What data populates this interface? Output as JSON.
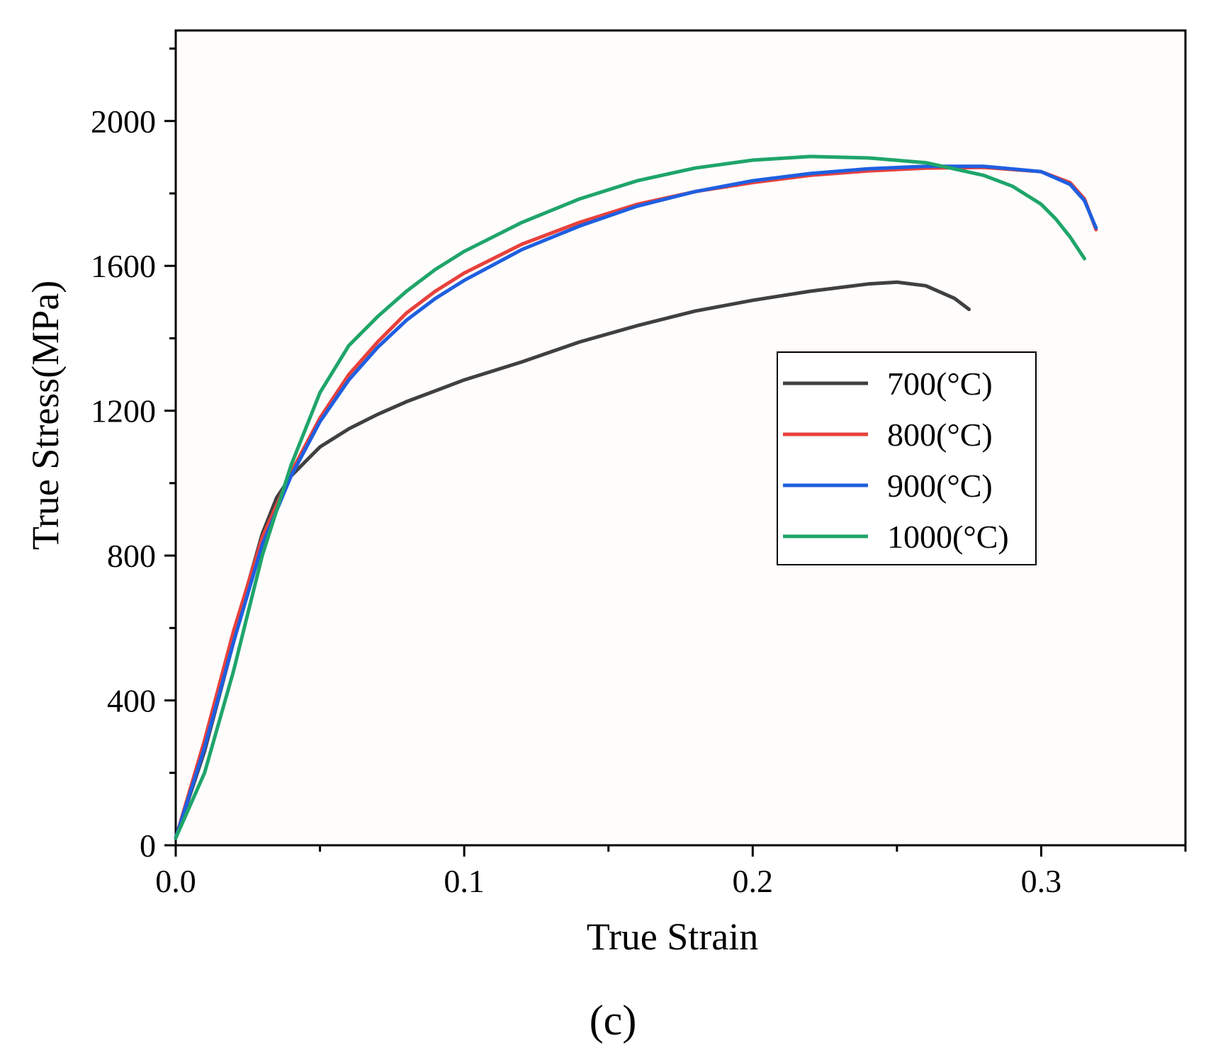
{
  "chart_data": {
    "type": "line",
    "xlabel": "True Strain",
    "ylabel": "True Stress(MPa)",
    "panel_label": "(c)",
    "xlim": [
      0,
      0.35
    ],
    "ylim": [
      0,
      2250
    ],
    "x_ticks": [
      0.0,
      0.1,
      0.2,
      0.3
    ],
    "x_tick_labels": [
      "0.0",
      "0.1",
      "0.2",
      "0.3"
    ],
    "x_minor_ticks": [
      0.05,
      0.15,
      0.25,
      0.35
    ],
    "y_ticks": [
      0,
      400,
      800,
      1200,
      1600,
      2000
    ],
    "y_tick_labels": [
      "0",
      "400",
      "800",
      "1200",
      "1600",
      "2000"
    ],
    "y_minor_ticks": [
      200,
      600,
      1000,
      1400,
      1800,
      2200
    ],
    "grid": false,
    "legend_position": "center-right",
    "series": [
      {
        "name": "700(°C)",
        "color": "#404040",
        "x": [
          0,
          0.01,
          0.02,
          0.025,
          0.03,
          0.035,
          0.04,
          0.045,
          0.05,
          0.06,
          0.07,
          0.08,
          0.09,
          0.1,
          0.12,
          0.14,
          0.16,
          0.18,
          0.2,
          0.22,
          0.24,
          0.25,
          0.26,
          0.27,
          0.275
        ],
        "y": [
          20,
          260,
          560,
          720,
          860,
          960,
          1020,
          1060,
          1100,
          1150,
          1190,
          1225,
          1255,
          1285,
          1335,
          1390,
          1435,
          1475,
          1505,
          1530,
          1550,
          1555,
          1545,
          1510,
          1480
        ]
      },
      {
        "name": "800(°C)",
        "color": "#e8413c",
        "x": [
          0,
          0.01,
          0.02,
          0.03,
          0.04,
          0.05,
          0.06,
          0.07,
          0.08,
          0.09,
          0.1,
          0.12,
          0.14,
          0.16,
          0.18,
          0.2,
          0.22,
          0.24,
          0.26,
          0.28,
          0.3,
          0.31,
          0.315,
          0.319
        ],
        "y": [
          20,
          290,
          590,
          850,
          1030,
          1180,
          1300,
          1390,
          1470,
          1530,
          1580,
          1660,
          1720,
          1770,
          1805,
          1830,
          1850,
          1862,
          1870,
          1872,
          1860,
          1830,
          1785,
          1700
        ]
      },
      {
        "name": "900(°C)",
        "color": "#1f5fe0",
        "x": [
          0,
          0.01,
          0.02,
          0.03,
          0.04,
          0.05,
          0.06,
          0.07,
          0.08,
          0.09,
          0.1,
          0.12,
          0.14,
          0.16,
          0.18,
          0.2,
          0.22,
          0.24,
          0.26,
          0.28,
          0.3,
          0.31,
          0.315,
          0.319
        ],
        "y": [
          20,
          270,
          560,
          830,
          1020,
          1170,
          1285,
          1375,
          1450,
          1510,
          1560,
          1645,
          1710,
          1765,
          1805,
          1835,
          1855,
          1868,
          1875,
          1875,
          1860,
          1825,
          1780,
          1705
        ]
      },
      {
        "name": "1000(°C)",
        "color": "#1fa56a",
        "x": [
          0,
          0.01,
          0.02,
          0.03,
          0.04,
          0.05,
          0.06,
          0.07,
          0.08,
          0.09,
          0.1,
          0.12,
          0.14,
          0.16,
          0.18,
          0.2,
          0.22,
          0.24,
          0.26,
          0.28,
          0.29,
          0.3,
          0.305,
          0.31,
          0.315
        ],
        "y": [
          20,
          200,
          480,
          800,
          1050,
          1250,
          1380,
          1460,
          1530,
          1590,
          1640,
          1720,
          1785,
          1835,
          1870,
          1892,
          1902,
          1898,
          1885,
          1850,
          1820,
          1770,
          1730,
          1680,
          1620
        ]
      }
    ]
  }
}
